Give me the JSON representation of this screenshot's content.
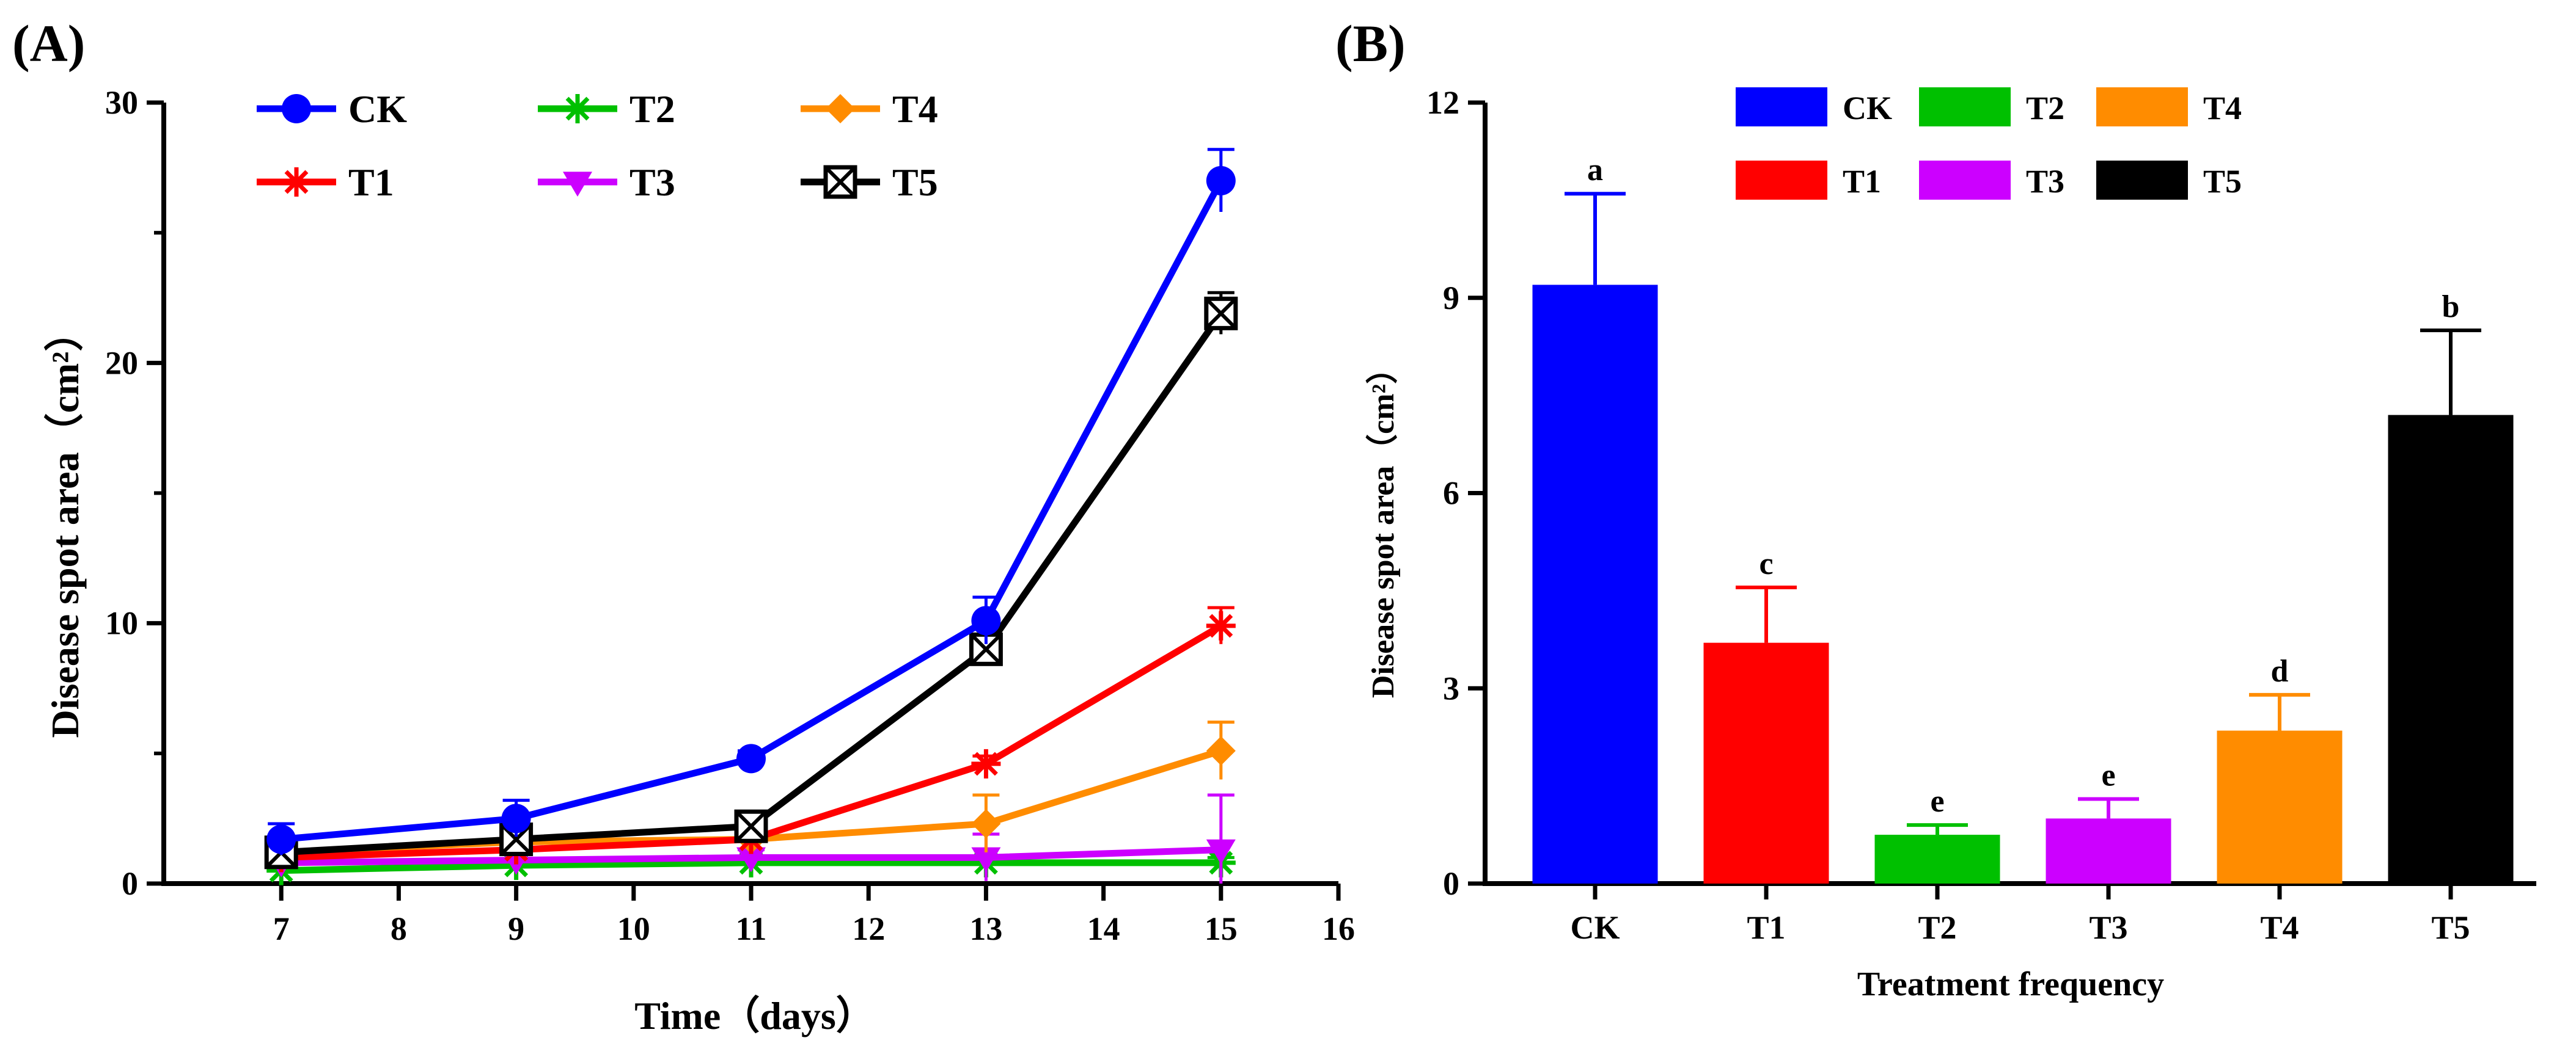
{
  "chart_data": [
    {
      "panel": "(A)",
      "type": "line",
      "xlabel": "Time（days）",
      "ylabel": "Disease spot area（cm²）",
      "xlim": [
        6,
        16
      ],
      "ylim": [
        0,
        30
      ],
      "xticks": [
        7,
        8,
        9,
        10,
        11,
        12,
        13,
        14,
        15,
        16
      ],
      "yticks": [
        0,
        10,
        20,
        30
      ],
      "x": [
        7,
        9,
        11,
        13,
        15
      ],
      "legend_position": "top",
      "series": [
        {
          "name": "CK",
          "color": "#0000ff",
          "marker": "circle",
          "values": [
            1.7,
            2.5,
            4.8,
            10.1,
            27.0
          ],
          "errors": [
            0.6,
            0.7,
            0.3,
            0.9,
            1.2
          ]
        },
        {
          "name": "T1",
          "color": "#ff0000",
          "marker": "asterisk",
          "values": [
            1.0,
            1.3,
            1.7,
            4.6,
            9.9
          ],
          "errors": [
            0.3,
            0.3,
            0.4,
            0.3,
            0.7
          ]
        },
        {
          "name": "T2",
          "color": "#00c000",
          "marker": "asterisk",
          "values": [
            0.5,
            0.7,
            0.8,
            0.8,
            0.8
          ],
          "errors": [
            0.2,
            0.2,
            0.2,
            0.2,
            0.2
          ]
        },
        {
          "name": "T3",
          "color": "#cc00ff",
          "marker": "triangle-down",
          "values": [
            0.8,
            0.9,
            1.0,
            1.0,
            1.3
          ],
          "errors": [
            0.3,
            0.3,
            0.3,
            0.9,
            2.1
          ]
        },
        {
          "name": "T4",
          "color": "#ff8c00",
          "marker": "diamond",
          "values": [
            1.2,
            1.6,
            1.7,
            2.3,
            5.1
          ],
          "errors": [
            0.3,
            0.3,
            0.3,
            1.1,
            1.1
          ]
        },
        {
          "name": "T5",
          "color": "#000000",
          "marker": "boxed-x",
          "values": [
            1.2,
            1.7,
            2.2,
            9.0,
            21.9
          ],
          "errors": [
            0.3,
            0.3,
            0.3,
            0.5,
            0.8
          ]
        }
      ]
    },
    {
      "panel": "(B)",
      "type": "bar",
      "xlabel": "Treatment frequency",
      "ylabel": "Disease spot area（cm²）",
      "ylim": [
        0,
        12
      ],
      "yticks": [
        0,
        3,
        6,
        9,
        12
      ],
      "categories": [
        "CK",
        "T1",
        "T2",
        "T3",
        "T4",
        "T5"
      ],
      "values": [
        9.2,
        3.7,
        0.75,
        1.0,
        2.35,
        7.2
      ],
      "errors": [
        1.4,
        0.85,
        0.15,
        0.3,
        0.55,
        1.3
      ],
      "significance": [
        "a",
        "c",
        "e",
        "e",
        "d",
        "b"
      ],
      "colors": [
        "#0000ff",
        "#ff0000",
        "#00c000",
        "#cc00ff",
        "#ff8c00",
        "#000000"
      ],
      "legend_position": "top"
    }
  ]
}
